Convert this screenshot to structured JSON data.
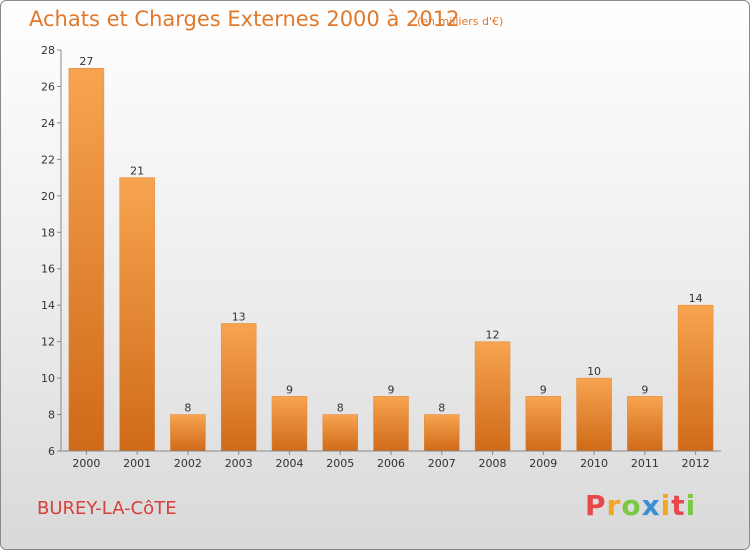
{
  "title": "Achats et Charges Externes 2000 à 2012",
  "subtitle": "(en milliers d'€)",
  "commune": "BUREY-LA-CôTE",
  "logo": {
    "letters": [
      "P",
      "r",
      "o",
      "x",
      "i",
      "t",
      "i"
    ]
  },
  "colors": {
    "bar_light": "#f7a450",
    "bar_dark": "#cf6a18",
    "title": "#e0792c",
    "commune": "#d6403a"
  },
  "chart_data": {
    "type": "bar",
    "categories": [
      "2000",
      "2001",
      "2002",
      "2003",
      "2004",
      "2005",
      "2006",
      "2007",
      "2008",
      "2009",
      "2010",
      "2011",
      "2012"
    ],
    "values": [
      27,
      21,
      8,
      13,
      9,
      8,
      9,
      8,
      12,
      9,
      10,
      9,
      14
    ],
    "ylim": [
      6,
      28
    ],
    "yticks": [
      6,
      8,
      10,
      12,
      14,
      16,
      18,
      20,
      22,
      24,
      26,
      28
    ],
    "xlabel": "",
    "ylabel": "",
    "grid": false,
    "legend": "none"
  }
}
